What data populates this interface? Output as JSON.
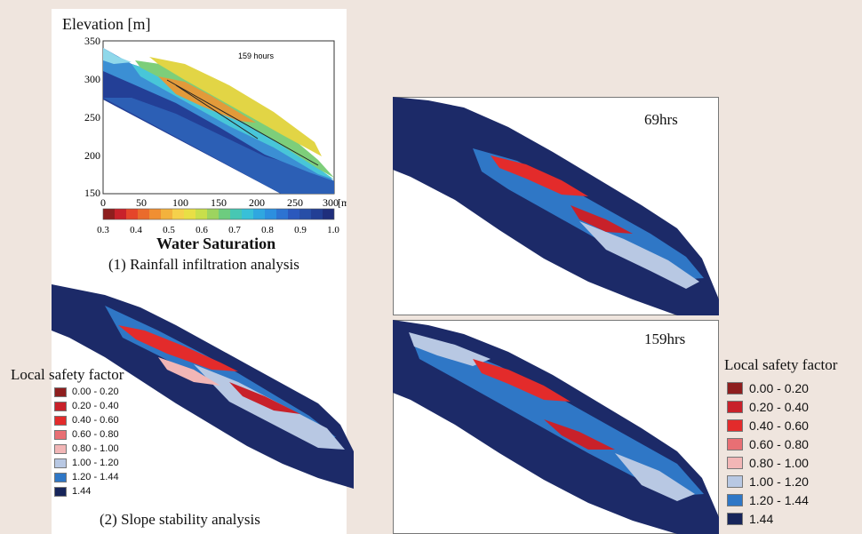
{
  "top_chart": {
    "ylabel": "Elevation [m]",
    "time_label": "159 hours",
    "y_ticks": [
      "350",
      "300",
      "250",
      "200",
      "150"
    ],
    "x_ticks": [
      "0",
      "50",
      "100",
      "150",
      "200",
      "250",
      "300"
    ],
    "x_unit": "[m]",
    "colorbar_ticks": [
      "0.3",
      "0.4",
      "0.5",
      "0.6",
      "0.7",
      "0.8",
      "0.9",
      "1.0"
    ],
    "colorbar_title": "Water Saturation",
    "caption": "(1) Rainfall infiltration analysis"
  },
  "bottom_left": {
    "legend_title": "Local safety factor",
    "legend_items": [
      "0.00 - 0.20",
      "0.20 - 0.40",
      "0.40 - 0.60",
      "0.60 - 0.80",
      "0.80 - 1.00",
      "1.00 - 1.20",
      "1.20 - 1.44",
      "1.44"
    ],
    "caption": "(2) Slope stability analysis"
  },
  "right_panels": {
    "top_time": "69hrs",
    "bottom_time": "159hrs",
    "legend_title": "Local safety factor",
    "legend_items": [
      "0.00 - 0.20",
      "0.20 - 0.40",
      "0.40 - 0.60",
      "0.60 - 0.80",
      "0.80 - 1.00",
      "1.00 - 1.20",
      "1.20 - 1.44",
      "1.44"
    ]
  },
  "colors": {
    "legend": [
      "#8e1e1e",
      "#c8212a",
      "#e32b2b",
      "#e86f74",
      "#f2b6b6",
      "#b8c8e3",
      "#2f77c6",
      "#17255a"
    ],
    "arrow": "#f0c329",
    "background": "#efe5de"
  }
}
